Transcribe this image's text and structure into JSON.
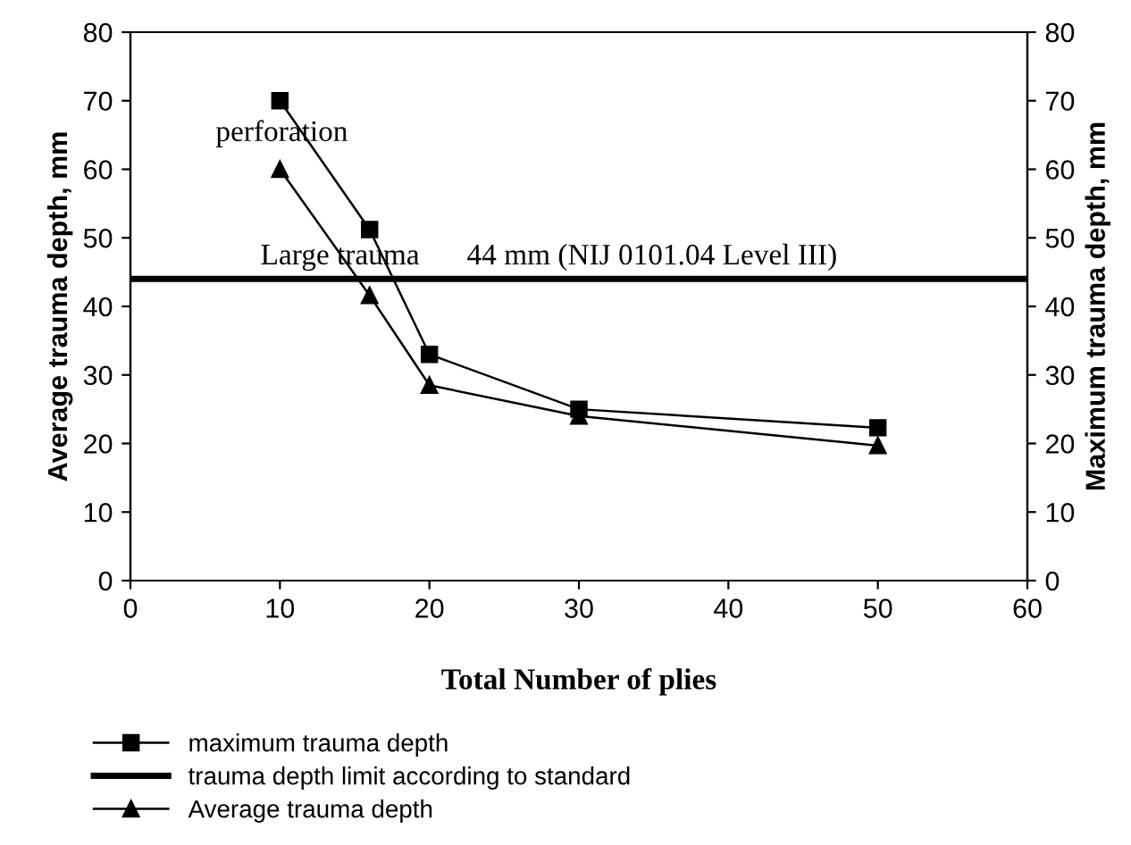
{
  "chart_data": {
    "type": "line",
    "xlabel": "Total Number of plies",
    "ylabel": "Average trauma depth, mm",
    "y2label": "Maximum trauma depth, mm",
    "x": [
      10,
      16,
      20,
      30,
      50
    ],
    "series": [
      {
        "name": "maximum trauma depth",
        "color": "#000000",
        "marker": "square",
        "values": [
          70,
          51.2,
          33,
          25,
          22.3
        ]
      },
      {
        "name": "Average trauma depth",
        "color": "#000000",
        "marker": "triangle",
        "values": [
          60,
          41.6,
          28.5,
          24,
          19.7
        ]
      }
    ],
    "ref_lines": [
      {
        "axis": "y",
        "value": 44,
        "label": "trauma depth limit according to standard",
        "color": "#000000"
      }
    ],
    "annotations": [
      "perforation",
      "Large trauma",
      "44 mm (NIJ 0101.04 Level III)"
    ],
    "xlim": [
      0,
      60
    ],
    "xticks": [
      0,
      10,
      20,
      30,
      40,
      50,
      60
    ],
    "ylim": [
      0,
      80
    ],
    "yticks": [
      0,
      10,
      20,
      30,
      40,
      50,
      60,
      70,
      80
    ],
    "y2lim": [
      0,
      80
    ],
    "y2ticks": [
      0,
      10,
      20,
      30,
      40,
      50,
      60,
      70,
      80
    ],
    "grid": false,
    "legend": "bottom",
    "line_style": "solid"
  }
}
